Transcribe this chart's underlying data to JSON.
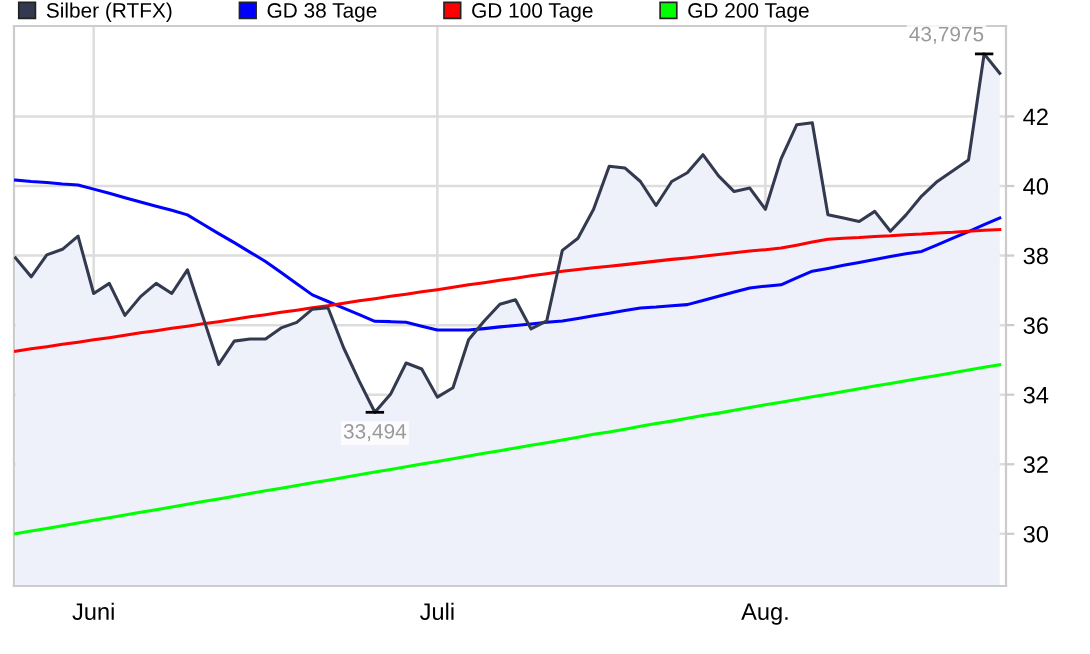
{
  "chart_data": {
    "type": "line",
    "categories": [
      null,
      null,
      null,
      null,
      null,
      "Juni",
      null,
      null,
      null,
      null,
      null,
      null,
      null,
      null,
      null,
      null,
      null,
      null,
      null,
      null,
      null,
      null,
      null,
      null,
      null,
      null,
      null,
      "Juli",
      null,
      null,
      null,
      null,
      null,
      null,
      null,
      null,
      null,
      null,
      null,
      null,
      null,
      null,
      null,
      null,
      null,
      null,
      null,
      null,
      "Aug.",
      null,
      null,
      null,
      null,
      null,
      null,
      null,
      null,
      null,
      null,
      null,
      null,
      null,
      null,
      null
    ],
    "series": [
      {
        "name": "Silber (RTFX)",
        "type": "area",
        "color": "#333a4f",
        "values": [
          37.93,
          37.39,
          38.02,
          38.18,
          38.56,
          36.91,
          37.2,
          36.28,
          36.82,
          37.2,
          36.91,
          37.59,
          36.23,
          34.87,
          35.54,
          35.6,
          35.6,
          35.92,
          36.08,
          36.46,
          36.5,
          35.35,
          34.39,
          33.494,
          34.01,
          34.91,
          34.74,
          33.93,
          34.2,
          35.58,
          36.12,
          36.6,
          36.73,
          35.89,
          36.12,
          38.15,
          38.5,
          39.33,
          40.57,
          40.52,
          40.13,
          39.44,
          40.13,
          40.38,
          40.9,
          40.29,
          39.84,
          39.94,
          39.33,
          40.78,
          41.76,
          41.82,
          39.17,
          39.08,
          38.98,
          39.27,
          38.7,
          39.17,
          39.71,
          40.13,
          40.44,
          40.75,
          43.7975,
          43.24
        ]
      },
      {
        "name": "GD 38 Tage",
        "color": "#0000ff",
        "values": [
          40.17,
          40.13,
          40.1,
          40.06,
          40.03,
          39.91,
          39.79,
          39.66,
          39.54,
          39.42,
          39.3,
          39.17,
          38.9,
          38.63,
          38.37,
          38.1,
          37.83,
          37.51,
          37.19,
          36.87,
          36.68,
          36.49,
          36.3,
          36.11,
          36.1,
          36.08,
          35.97,
          35.86,
          35.86,
          35.86,
          35.9,
          35.95,
          35.99,
          36.03,
          36.08,
          36.12,
          36.19,
          36.27,
          36.34,
          36.42,
          36.49,
          36.52,
          36.56,
          36.59,
          36.71,
          36.83,
          36.95,
          37.07,
          37.12,
          37.16,
          37.36,
          37.55,
          37.63,
          37.72,
          37.8,
          37.89,
          37.97,
          38.05,
          38.12,
          38.31,
          38.5,
          38.69,
          38.89,
          39.08
        ]
      },
      {
        "name": "GD 100 Tage",
        "color": "#ff0000",
        "values": [
          35.25,
          35.32,
          35.38,
          35.45,
          35.51,
          35.58,
          35.64,
          35.71,
          35.78,
          35.84,
          35.91,
          35.97,
          36.04,
          36.1,
          36.17,
          36.24,
          36.3,
          36.37,
          36.43,
          36.5,
          36.56,
          36.63,
          36.7,
          36.76,
          36.83,
          36.89,
          36.96,
          37.02,
          37.09,
          37.16,
          37.22,
          37.29,
          37.35,
          37.42,
          37.48,
          37.55,
          37.6,
          37.65,
          37.69,
          37.74,
          37.79,
          37.84,
          37.89,
          37.93,
          37.98,
          38.03,
          38.08,
          38.13,
          38.17,
          38.22,
          38.3,
          38.39,
          38.47,
          38.5,
          38.52,
          38.55,
          38.57,
          38.6,
          38.62,
          38.65,
          38.67,
          38.7,
          38.73,
          38.75
        ]
      },
      {
        "name": "GD 200 Tage",
        "color": "#00ff00",
        "values": [
          30.0,
          30.08,
          30.15,
          30.23,
          30.31,
          30.39,
          30.46,
          30.54,
          30.62,
          30.69,
          30.77,
          30.85,
          30.93,
          31.0,
          31.08,
          31.16,
          31.24,
          31.31,
          31.39,
          31.47,
          31.54,
          31.62,
          31.7,
          31.78,
          31.85,
          31.93,
          32.01,
          32.08,
          32.16,
          32.24,
          32.32,
          32.39,
          32.47,
          32.55,
          32.62,
          32.7,
          32.78,
          32.86,
          32.93,
          33.01,
          33.09,
          33.17,
          33.24,
          33.32,
          33.4,
          33.47,
          33.55,
          33.63,
          33.71,
          33.78,
          33.86,
          33.94,
          34.01,
          34.09,
          34.17,
          34.25,
          34.32,
          34.4,
          34.48,
          34.55,
          34.63,
          34.71,
          34.79,
          34.86
        ]
      }
    ],
    "annotations": [
      "33,494",
      "43,7975"
    ],
    "ylim": [
      28.5,
      44.6
    ],
    "yticks": [
      30,
      32,
      34,
      36,
      38,
      40,
      42
    ],
    "grid": true,
    "legend": "top",
    "marker": "none",
    "line_style": "solid"
  }
}
